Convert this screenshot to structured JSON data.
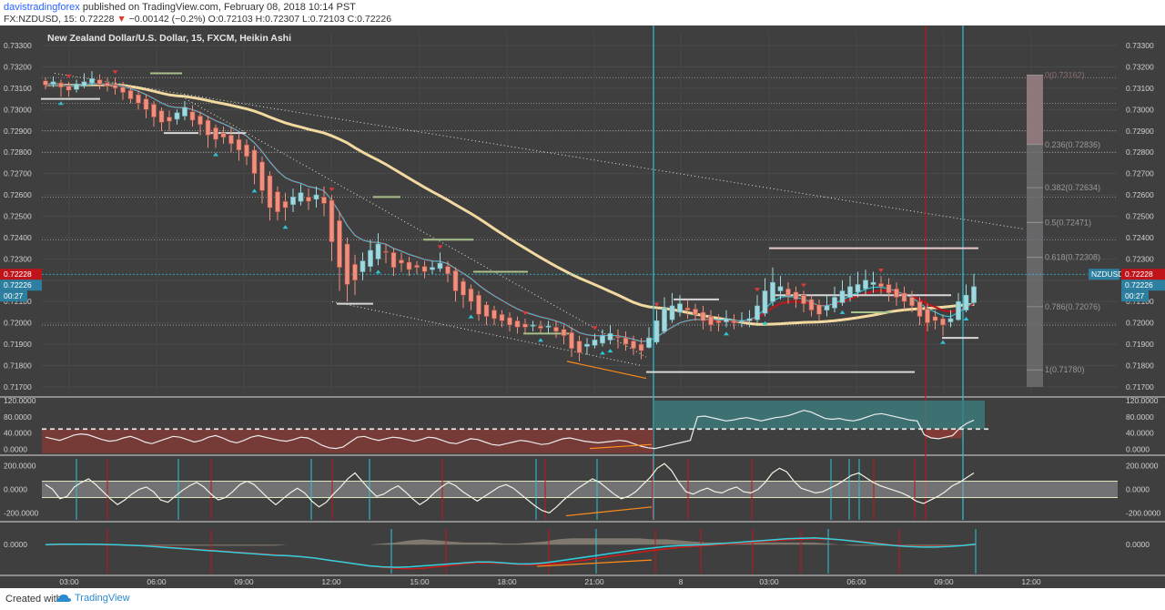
{
  "header": {
    "author": "davistradingforex",
    "published": "published on TradingView.com, February 08, 2018 10:14 PST",
    "symbol": "FX:NZDUSD, 15",
    "last": "0.72228",
    "change": "−0.00142 (−0.2%)",
    "ohlc": "O:0.72103 H:0.72307 L:0.72103 C:0.72226"
  },
  "footer": {
    "created_with": "Created with",
    "brand": "TradingView"
  },
  "colors": {
    "background": "#3f3f3f",
    "up_candle": "#9fd9df",
    "down_candle": "#ef8f7e",
    "teal": "#2ec4d6",
    "red": "#c0141b",
    "sma": "#f1d9a0",
    "orange": "#ff8c1a"
  },
  "chart_data": [
    {
      "type": "candlestick",
      "title": "New Zealand Dollar/U.S. Dollar, 15, FXCM, Heikin Ashi",
      "symbol_tag": "NZDUSD",
      "price_tag": "0.72228",
      "price_tag2": "0.72226",
      "countdown": "00:27",
      "ylim": [
        0.7167,
        0.7336
      ],
      "y_ticks": [
        "0.73300",
        "0.73200",
        "0.73100",
        "0.73000",
        "0.72900",
        "0.72800",
        "0.72700",
        "0.72600",
        "0.72500",
        "0.72400",
        "0.72300",
        "0.72200",
        "0.72100",
        "0.72000",
        "0.71900",
        "0.71800",
        "0.71700"
      ],
      "x_ticks": [
        "03:00",
        "06:00",
        "09:00",
        "12:00",
        "15:00",
        "18:00",
        "21:00",
        "8",
        "03:00",
        "06:00",
        "09:00",
        "12:00"
      ],
      "fib_levels": [
        {
          "label": "0(0.73162)",
          "value": 0.73162
        },
        {
          "label": "0.236(0.72836)",
          "value": 0.72836
        },
        {
          "label": "0.382(0.72634)",
          "value": 0.72634
        },
        {
          "label": "0.5(0.72471)",
          "value": 0.72471
        },
        {
          "label": "0.618(0.72308)",
          "value": 0.72308
        },
        {
          "label": "0.786(0.72076)",
          "value": 0.72076
        },
        {
          "label": "1(0.71780)",
          "value": 0.7178
        }
      ],
      "candles": [
        [
          0.73135,
          0.73115,
          0.7315,
          0.73095
        ],
        [
          0.7312,
          0.7313,
          0.73155,
          0.73105
        ],
        [
          0.73125,
          0.73105,
          0.7314,
          0.7306
        ],
        [
          0.7311,
          0.7309,
          0.7313,
          0.7306
        ],
        [
          0.73095,
          0.7312,
          0.7314,
          0.7308
        ],
        [
          0.7311,
          0.7313,
          0.7317,
          0.731
        ],
        [
          0.73125,
          0.73145,
          0.7318,
          0.7311
        ],
        [
          0.7314,
          0.7312,
          0.73165,
          0.73095
        ],
        [
          0.73125,
          0.7311,
          0.7315,
          0.73085
        ],
        [
          0.73115,
          0.731,
          0.7315,
          0.7307
        ],
        [
          0.73105,
          0.7308,
          0.7313,
          0.73045
        ],
        [
          0.7309,
          0.7305,
          0.7311,
          0.7303
        ],
        [
          0.7307,
          0.7303,
          0.7309,
          0.73
        ],
        [
          0.7305,
          0.73,
          0.7307,
          0.7296
        ],
        [
          0.73025,
          0.72965,
          0.7304,
          0.7292
        ],
        [
          0.72995,
          0.7294,
          0.7301,
          0.729
        ],
        [
          0.72965,
          0.72945,
          0.72995,
          0.729
        ],
        [
          0.72955,
          0.72985,
          0.73,
          0.7293
        ],
        [
          0.7297,
          0.7301,
          0.7304,
          0.7295
        ],
        [
          0.7299,
          0.7295,
          0.7302,
          0.7292
        ],
        [
          0.7297,
          0.7293,
          0.7299,
          0.7288
        ],
        [
          0.7295,
          0.7288,
          0.7297,
          0.7282
        ],
        [
          0.72915,
          0.7286,
          0.7293,
          0.7282
        ],
        [
          0.7289,
          0.7287,
          0.7292,
          0.7284
        ],
        [
          0.7288,
          0.7284,
          0.7292,
          0.728
        ],
        [
          0.7286,
          0.7281,
          0.7289,
          0.7276
        ],
        [
          0.72835,
          0.7278,
          0.7286,
          0.7274
        ],
        [
          0.7281,
          0.727,
          0.7283,
          0.7265
        ],
        [
          0.72755,
          0.7262,
          0.7278,
          0.7256
        ],
        [
          0.7269,
          0.7254,
          0.7271,
          0.7248
        ],
        [
          0.72615,
          0.7252,
          0.7264,
          0.7248
        ],
        [
          0.7257,
          0.7254,
          0.7261,
          0.7248
        ],
        [
          0.72555,
          0.7259,
          0.7263,
          0.7252
        ],
        [
          0.7257,
          0.7261,
          0.7265,
          0.7255
        ],
        [
          0.7259,
          0.7257,
          0.7263,
          0.7253
        ],
        [
          0.7258,
          0.726,
          0.7264,
          0.7254
        ],
        [
          0.7259,
          0.7256,
          0.7264,
          0.725
        ],
        [
          0.72575,
          0.7238,
          0.726,
          0.7229
        ],
        [
          0.7248,
          0.7226,
          0.7252,
          0.7215
        ],
        [
          0.7237,
          0.7218,
          0.724,
          0.721
        ],
        [
          0.72275,
          0.722,
          0.7232,
          0.7213
        ],
        [
          0.7224,
          0.7229,
          0.7233,
          0.722
        ],
        [
          0.72265,
          0.7234,
          0.7239,
          0.7224
        ],
        [
          0.723,
          0.7237,
          0.7242,
          0.7227
        ],
        [
          0.72335,
          0.7233,
          0.7237,
          0.7228
        ],
        [
          0.7233,
          0.7226,
          0.7235,
          0.7222
        ],
        [
          0.72295,
          0.7228,
          0.7233,
          0.7224
        ],
        [
          0.72285,
          0.7225,
          0.7231,
          0.7222
        ],
        [
          0.7227,
          0.7226,
          0.7229,
          0.7223
        ],
        [
          0.72265,
          0.7224,
          0.7229,
          0.7221
        ],
        [
          0.7225,
          0.7226,
          0.7229,
          0.7223
        ],
        [
          0.72255,
          0.7228,
          0.7233,
          0.7224
        ],
        [
          0.72265,
          0.7223,
          0.7229,
          0.7219
        ],
        [
          0.72245,
          0.7215,
          0.7226,
          0.721
        ],
        [
          0.72195,
          0.7213,
          0.7221,
          0.7207
        ],
        [
          0.7216,
          0.721,
          0.7218,
          0.7206
        ],
        [
          0.7213,
          0.7204,
          0.7215,
          0.7201
        ],
        [
          0.72085,
          0.7203,
          0.721,
          0.7199
        ],
        [
          0.7206,
          0.7202,
          0.7208,
          0.7199
        ],
        [
          0.7204,
          0.7201,
          0.7206,
          0.7198
        ],
        [
          0.72025,
          0.7199,
          0.7205,
          0.7196
        ],
        [
          0.7201,
          0.7198,
          0.7203,
          0.7195
        ],
        [
          0.71995,
          0.7198,
          0.7202,
          0.7195
        ],
        [
          0.71985,
          0.7199,
          0.7201,
          0.7196
        ],
        [
          0.71985,
          0.71975,
          0.7201,
          0.7195
        ],
        [
          0.7198,
          0.71985,
          0.7201,
          0.7195
        ],
        [
          0.7198,
          0.7196,
          0.7201,
          0.7193
        ],
        [
          0.7197,
          0.7194,
          0.7199,
          0.719
        ],
        [
          0.71955,
          0.7188,
          0.7198,
          0.7184
        ],
        [
          0.71915,
          0.7186,
          0.7194,
          0.7182
        ],
        [
          0.7189,
          0.719,
          0.7193,
          0.7185
        ],
        [
          0.71895,
          0.7192,
          0.7195,
          0.7188
        ],
        [
          0.71905,
          0.7194,
          0.7197,
          0.7189
        ],
        [
          0.7192,
          0.7195,
          0.7199,
          0.719
        ],
        [
          0.71935,
          0.7193,
          0.7197,
          0.7188
        ],
        [
          0.7193,
          0.719,
          0.7196,
          0.7187
        ],
        [
          0.71915,
          0.7188,
          0.7194,
          0.7185
        ],
        [
          0.719,
          0.7187,
          0.7193,
          0.7183
        ],
        [
          0.71885,
          0.7193,
          0.7198,
          0.7188
        ],
        [
          0.7191,
          0.7201,
          0.7206,
          0.719
        ],
        [
          0.7196,
          0.7207,
          0.7212,
          0.7195
        ],
        [
          0.72015,
          0.7208,
          0.7214,
          0.72
        ],
        [
          0.7205,
          0.7209,
          0.7213,
          0.7203
        ],
        [
          0.7207,
          0.7206,
          0.7211,
          0.7202
        ],
        [
          0.72065,
          0.7204,
          0.7209,
          0.7201
        ],
        [
          0.7205,
          0.7201,
          0.7208,
          0.7197
        ],
        [
          0.7203,
          0.7199,
          0.7206,
          0.7196
        ],
        [
          0.7201,
          0.72,
          0.7204,
          0.7196
        ],
        [
          0.72005,
          0.7202,
          0.7206,
          0.7198
        ],
        [
          0.7201,
          0.72,
          0.7204,
          0.7197
        ],
        [
          0.72005,
          0.7201,
          0.7205,
          0.7198
        ],
        [
          0.7201,
          0.7202,
          0.7206,
          0.7198
        ],
        [
          0.72015,
          0.7208,
          0.7213,
          0.72
        ],
        [
          0.72045,
          0.7215,
          0.7221,
          0.7203
        ],
        [
          0.721,
          0.7219,
          0.7226,
          0.7208
        ],
        [
          0.7215,
          0.7217,
          0.7222,
          0.7211
        ],
        [
          0.7216,
          0.7213,
          0.7219,
          0.7209
        ],
        [
          0.72145,
          0.7211,
          0.7217,
          0.7207
        ],
        [
          0.7213,
          0.7209,
          0.7215,
          0.7205
        ],
        [
          0.7211,
          0.7206,
          0.7213,
          0.7203
        ],
        [
          0.72085,
          0.7204,
          0.7211,
          0.7201
        ],
        [
          0.7206,
          0.7208,
          0.7213,
          0.7203
        ],
        [
          0.7207,
          0.7212,
          0.7217,
          0.7205
        ],
        [
          0.72095,
          0.7215,
          0.722,
          0.7208
        ],
        [
          0.7212,
          0.7217,
          0.7222,
          0.721
        ],
        [
          0.72145,
          0.7218,
          0.7224,
          0.7212
        ],
        [
          0.7216,
          0.722,
          0.7225,
          0.7213
        ],
        [
          0.7218,
          0.7219,
          0.7224,
          0.7214
        ],
        [
          0.72185,
          0.7217,
          0.7222,
          0.7213
        ],
        [
          0.7218,
          0.7214,
          0.7221,
          0.721
        ],
        [
          0.7216,
          0.7212,
          0.7219,
          0.7208
        ],
        [
          0.7214,
          0.721,
          0.7217,
          0.7206
        ],
        [
          0.7212,
          0.7208,
          0.7215,
          0.7205
        ],
        [
          0.721,
          0.7203,
          0.7212,
          0.7199
        ],
        [
          0.72065,
          0.72,
          0.7209,
          0.7196
        ],
        [
          0.7203,
          0.7201,
          0.7206,
          0.7197
        ],
        [
          0.7202,
          0.7199,
          0.7204,
          0.7194
        ],
        [
          0.72005,
          0.7202,
          0.7206,
          0.7198
        ],
        [
          0.72015,
          0.721,
          0.7214,
          0.7201
        ],
        [
          0.7206,
          0.7213,
          0.7218,
          0.7205
        ],
        [
          0.72095,
          0.7217,
          0.7223,
          0.7208
        ]
      ]
    },
    {
      "type": "line",
      "name": "oscillator-1",
      "ylim": [
        -10,
        120
      ],
      "y_ticks": [
        "120.0000",
        "80.0000",
        "40.0000",
        "0.0000"
      ],
      "dashed_level": 50,
      "values": [
        30,
        26,
        22,
        28,
        35,
        38,
        36,
        30,
        24,
        20,
        22,
        28,
        32,
        26,
        18,
        14,
        20,
        26,
        32,
        30,
        24,
        18,
        22,
        30,
        34,
        28,
        20,
        16,
        22,
        30,
        34,
        30,
        26,
        22,
        20,
        24,
        30,
        28,
        20,
        10,
        4,
        2,
        6,
        18,
        30,
        32,
        26,
        22,
        26,
        30,
        28,
        24,
        20,
        24,
        30,
        28,
        22,
        16,
        14,
        20,
        26,
        24,
        18,
        12,
        10,
        14,
        18,
        22,
        20,
        16,
        12,
        14,
        20,
        26,
        28,
        24,
        20,
        18,
        16,
        18,
        20,
        22,
        20,
        14,
        8,
        4,
        2,
        6,
        10,
        14,
        18,
        22,
        80,
        82,
        78,
        74,
        70,
        72,
        76,
        78,
        74,
        70,
        74,
        78,
        80,
        84,
        90,
        96,
        92,
        84,
        76,
        74,
        76,
        72,
        70,
        74,
        80,
        86,
        88,
        84,
        80,
        76,
        72,
        70,
        36,
        28,
        26,
        30,
        34,
        52,
        64,
        72
      ]
    },
    {
      "type": "line",
      "name": "oscillator-2",
      "ylim": [
        -260,
        260
      ],
      "y_ticks": [
        "200.0000",
        "0.0000",
        "-200.0000"
      ],
      "band": [
        -70,
        70
      ],
      "values": [
        40,
        0,
        -80,
        -60,
        20,
        60,
        90,
        40,
        -20,
        -80,
        -130,
        -90,
        -40,
        0,
        20,
        -20,
        -90,
        -110,
        -60,
        -10,
        30,
        60,
        20,
        -40,
        -90,
        -70,
        -20,
        40,
        70,
        40,
        -20,
        -80,
        -130,
        -80,
        -30,
        10,
        -30,
        -100,
        -150,
        -110,
        -40,
        20,
        90,
        140,
        70,
        0,
        -60,
        -40,
        0,
        30,
        -20,
        -80,
        -130,
        -90,
        -30,
        20,
        60,
        30,
        -20,
        -60,
        -100,
        -60,
        -20,
        20,
        40,
        10,
        -40,
        -90,
        -140,
        -180,
        -200,
        -150,
        -90,
        -40,
        10,
        50,
        90,
        60,
        10,
        -40,
        -80,
        -60,
        -20,
        40,
        100,
        180,
        220,
        160,
        60,
        -20,
        -40,
        -10,
        10,
        -20,
        -30,
        0,
        20,
        -20,
        -30,
        0,
        60,
        140,
        180,
        150,
        70,
        10,
        -10,
        -30,
        -20,
        10,
        40,
        80,
        120,
        140,
        100,
        60,
        30,
        10,
        -10,
        -30,
        -60,
        -100,
        -120,
        -90,
        -60,
        -20,
        30,
        60,
        100,
        140
      ]
    },
    {
      "type": "line",
      "name": "oscillator-3",
      "ylim": [
        -6,
        4
      ],
      "y_ticks": [
        "0.0000"
      ],
      "series": [
        {
          "values": [
            0,
            0.1,
            0.1,
            0.1,
            0.05,
            0,
            -0.1,
            -0.2,
            -0.4,
            -0.6,
            -0.8,
            -1.0,
            -1.2,
            -1.4,
            -1.6,
            -1.8,
            -2.0,
            -2.2,
            -2.3,
            -2.5,
            -2.8,
            -3.2,
            -3.6,
            -4.0,
            -4.4,
            -4.6,
            -4.7,
            -4.6,
            -4.4,
            -4.2,
            -4.0,
            -3.8,
            -3.6,
            -3.6,
            -3.8,
            -4.0,
            -4.0,
            -3.8,
            -3.4,
            -3.0,
            -2.6,
            -2.2,
            -1.8,
            -1.4,
            -1.0,
            -0.7,
            -0.4,
            -0.2,
            -0.1,
            0,
            0.2,
            0.4,
            0.6,
            0.8,
            1.0,
            1.2,
            1.3,
            1.4,
            1.2,
            1.0,
            0.7,
            0.4,
            0.1,
            -0.2,
            -0.4,
            -0.5,
            -0.5,
            -0.4,
            -0.2,
            0.1
          ]
        },
        {
          "values": [
            0,
            0,
            0.05,
            0.05,
            0,
            -0.05,
            -0.1,
            -0.2,
            -0.3,
            -0.5,
            -0.7,
            -0.9,
            -1.1,
            -1.3,
            -1.5,
            -1.7,
            -1.9,
            -2.1,
            -2.3,
            -2.5,
            -2.8,
            -3.2,
            -3.6,
            -4.0,
            -4.4,
            -4.7,
            -4.9,
            -5.0,
            -4.9,
            -4.6,
            -4.3,
            -4.0,
            -3.8,
            -3.8,
            -3.9,
            -4.1,
            -4.2,
            -4.1,
            -3.9,
            -3.6,
            -3.2,
            -2.8,
            -2.4,
            -2.0,
            -1.6,
            -1.2,
            -0.9,
            -0.6,
            -0.4,
            -0.2,
            0,
            0.2,
            0.4,
            0.6,
            0.8,
            1.0,
            1.1,
            1.2,
            1.1,
            1.0,
            0.8,
            0.5,
            0.2,
            -0.1,
            -0.3,
            -0.4,
            -0.4,
            -0.3,
            -0.2,
            0
          ]
        }
      ]
    }
  ]
}
